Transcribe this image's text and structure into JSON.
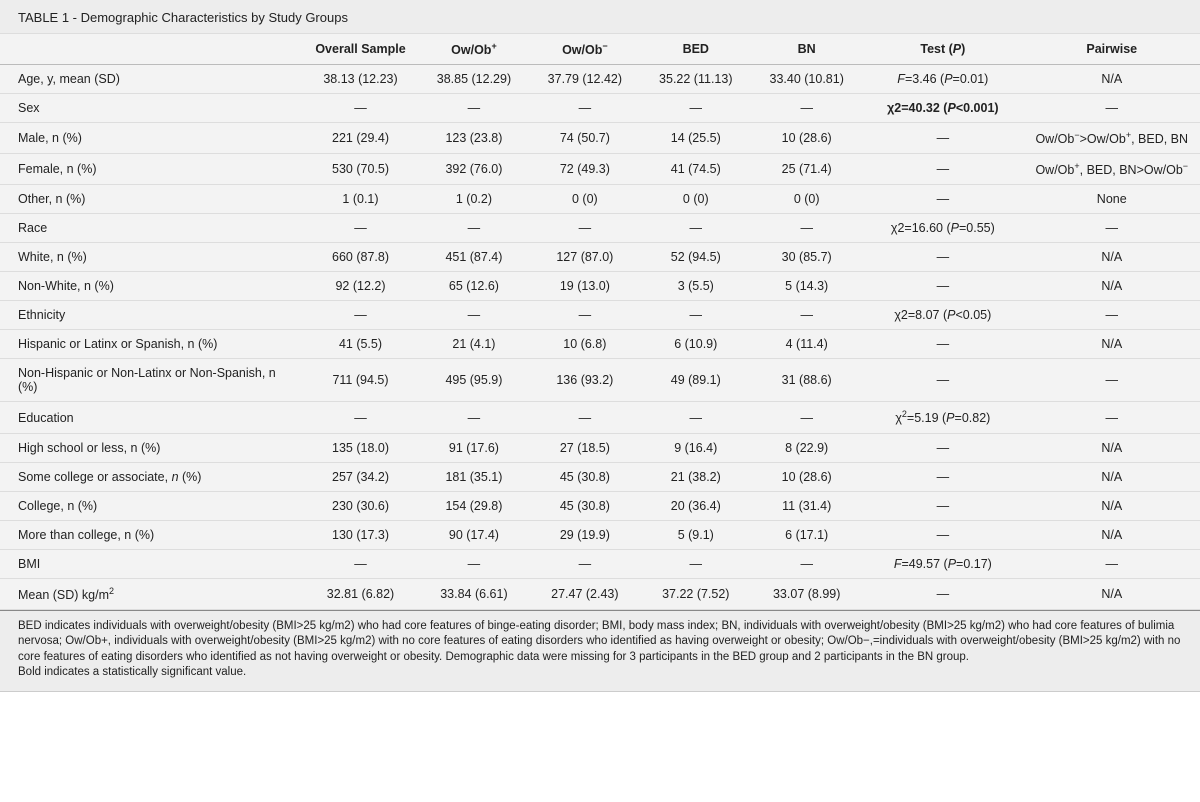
{
  "title": "TABLE 1 - Demographic Characteristics by Study Groups",
  "headers": {
    "rowlabel": "",
    "overall": "Overall Sample",
    "g1": "Ow/Ob",
    "g1sup": "+",
    "g2": "Ow/Ob",
    "g2sup": "−",
    "g3": "BED",
    "g4": "BN",
    "test": "Test (",
    "test_i": "P",
    "test_end": ")",
    "pair": "Pairwise"
  },
  "rows": [
    {
      "label": "Age, y, mean (SD)",
      "overall": "38.13 (12.23)",
      "g1": "38.85 (12.29)",
      "g2": "37.79 (12.42)",
      "g3": "35.22 (11.13)",
      "g4": "33.40 (10.81)",
      "test_html": "<i>F</i>=3.46 (<i>P</i>=0.01)",
      "pair": "N/A"
    },
    {
      "label": "Sex",
      "overall": "—",
      "g1": "—",
      "g2": "—",
      "g3": "—",
      "g4": "—",
      "test_html": "<b>χ2=40.32 (<i>P</i>&lt;0.001)</b>",
      "pair": "—"
    },
    {
      "label": "Male, n (%)",
      "overall": "221 (29.4)",
      "g1": "123 (23.8)",
      "g2": "74 (50.7)",
      "g3": "14 (25.5)",
      "g4": "10 (28.6)",
      "test_html": "—",
      "pair_html": "Ow/Ob<sup>−</sup>&gt;Ow/Ob<sup>+</sup>, BED, BN"
    },
    {
      "label": "Female, n (%)",
      "overall": "530 (70.5)",
      "g1": "392 (76.0)",
      "g2": "72 (49.3)",
      "g3": "41 (74.5)",
      "g4": "25 (71.4)",
      "test_html": "—",
      "pair_html": "Ow/Ob<sup>+</sup>, BED, BN&gt;Ow/Ob<sup>−</sup>"
    },
    {
      "label": "Other, n (%)",
      "overall": "1 (0.1)",
      "g1": "1 (0.2)",
      "g2": "0 (0)",
      "g3": "0 (0)",
      "g4": "0 (0)",
      "test_html": "—",
      "pair": "None"
    },
    {
      "label": "Race",
      "overall": "—",
      "g1": "—",
      "g2": "—",
      "g3": "—",
      "g4": "—",
      "test_html": "χ2=16.60 (<i>P</i>=0.55)",
      "pair": "—"
    },
    {
      "label": "White, n (%)",
      "overall": "660 (87.8)",
      "g1": "451 (87.4)",
      "g2": "127 (87.0)",
      "g3": "52 (94.5)",
      "g4": "30 (85.7)",
      "test_html": "—",
      "pair": "N/A"
    },
    {
      "label": "Non-White, n (%)",
      "overall": "92 (12.2)",
      "g1": "65 (12.6)",
      "g2": "19 (13.0)",
      "g3": "3 (5.5)",
      "g4": "5 (14.3)",
      "test_html": "—",
      "pair": "N/A"
    },
    {
      "label": "Ethnicity",
      "overall": "—",
      "g1": "—",
      "g2": "—",
      "g3": "—",
      "g4": "—",
      "test_html": "χ2=8.07 (<i>P</i>&lt;0.05)",
      "pair": "—"
    },
    {
      "label": "Hispanic or Latinx or Spanish, n (%)",
      "overall": "41 (5.5)",
      "g1": "21 (4.1)",
      "g2": "10 (6.8)",
      "g3": "6 (10.9)",
      "g4": "4 (11.4)",
      "test_html": "—",
      "pair": "N/A"
    },
    {
      "label": "Non-Hispanic or Non-Latinx or Non-Spanish, n (%)",
      "overall": "711 (94.5)",
      "g1": "495 (95.9)",
      "g2": "136 (93.2)",
      "g3": "49 (89.1)",
      "g4": "31 (88.6)",
      "test_html": "—",
      "pair": "—"
    },
    {
      "label": "Education",
      "overall": "—",
      "g1": "—",
      "g2": "—",
      "g3": "—",
      "g4": "—",
      "test_html": "χ<sup>2</sup>=5.19 (<i>P</i>=0.82)",
      "pair": "—"
    },
    {
      "label": "High school or less, n (%)",
      "overall": "135 (18.0)",
      "g1": "91 (17.6)",
      "g2": "27 (18.5)",
      "g3": "9 (16.4)",
      "g4": "8 (22.9)",
      "test_html": "—",
      "pair": "N/A"
    },
    {
      "label_html": "Some college or associate, <i>n</i> (%)",
      "overall": "257 (34.2)",
      "g1": "181 (35.1)",
      "g2": "45 (30.8)",
      "g3": "21 (38.2)",
      "g4": "10 (28.6)",
      "test_html": "—",
      "pair": "N/A"
    },
    {
      "label": "College, n (%)",
      "overall": "230 (30.6)",
      "g1": "154 (29.8)",
      "g2": "45 (30.8)",
      "g3": "20 (36.4)",
      "g4": "11 (31.4)",
      "test_html": "—",
      "pair": "N/A"
    },
    {
      "label": "More than college, n (%)",
      "overall": "130 (17.3)",
      "g1": "90 (17.4)",
      "g2": "29 (19.9)",
      "g3": "5 (9.1)",
      "g4": "6 (17.1)",
      "test_html": "—",
      "pair": "N/A"
    },
    {
      "label": "BMI",
      "overall": "—",
      "g1": "—",
      "g2": "—",
      "g3": "—",
      "g4": "—",
      "test_html": "<i>F</i>=49.57 (<i>P</i>=0.17)",
      "pair": "—"
    },
    {
      "label_html": "Mean (SD) kg/m<sup>2</sup>",
      "overall": "32.81 (6.82)",
      "g1": "33.84 (6.61)",
      "g2": "27.47 (2.43)",
      "g3": "37.22 (7.52)",
      "g4": "33.07 (8.99)",
      "test_html": "—",
      "pair": "N/A"
    }
  ],
  "footnote": {
    "line1": "BED indicates individuals with overweight/obesity (BMI>25 kg/m2) who had core features of binge-eating disorder; BMI, body mass index; BN, individuals with overweight/obesity (BMI>25 kg/m2) who had core features of bulimia nervosa; Ow/Ob+, individuals with overweight/obesity (BMI>25 kg/m2) with no core features of eating disorders who identified as having overweight or obesity; Ow/Ob−,=individuals with overweight/obesity (BMI>25 kg/m2) with no core features of eating disorders who identified as not having overweight or obesity. Demographic data were missing for 3 participants in the BED group and 2 participants in the BN group.",
    "line2": "Bold indicates a statistically significant value."
  },
  "style": {
    "background": "#f3f3f3",
    "header_bg": "#ededed",
    "text_color": "#222222",
    "border_color": "#dddddd",
    "font_size_body": 12.5,
    "font_size_title": 13,
    "font_size_footnote": 11.5
  }
}
